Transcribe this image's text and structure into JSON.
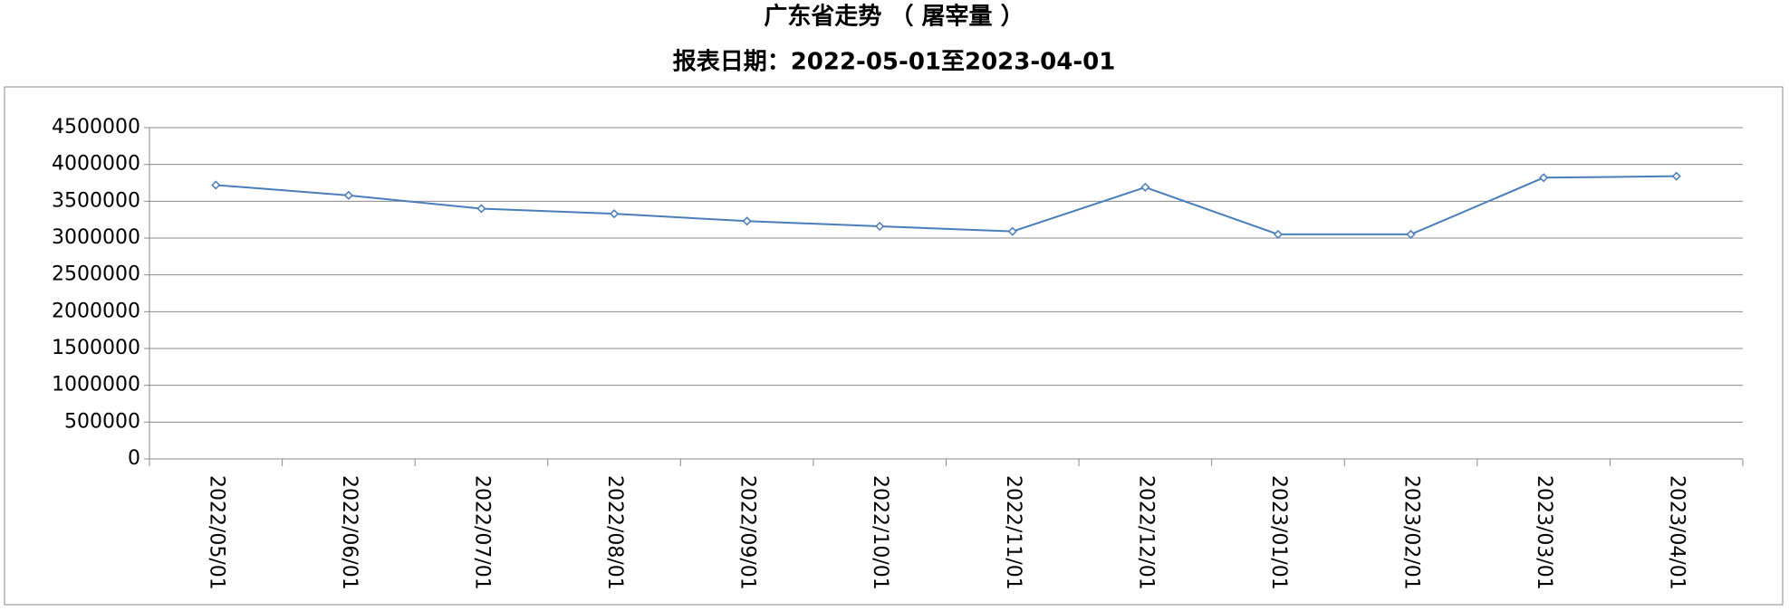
{
  "chart_data": {
    "type": "line",
    "title": "广东省走势 （ 屠宰量 ）",
    "subtitle": "报表日期：2022-05-01至2023-04-01",
    "categories": [
      "2022/05/01",
      "2022/06/01",
      "2022/07/01",
      "2022/08/01",
      "2022/09/01",
      "2022/10/01",
      "2022/11/01",
      "2022/12/01",
      "2023/01/01",
      "2023/02/01",
      "2023/03/01",
      "2023/04/01"
    ],
    "values": [
      3720000,
      3580000,
      3400000,
      3330000,
      3230000,
      3160000,
      3090000,
      3690000,
      3050000,
      3050000,
      3820000,
      3840000
    ],
    "color": "#4a7ebb",
    "ylim": [
      0,
      4500000
    ],
    "yticks": [
      0,
      500000,
      1000000,
      1500000,
      2000000,
      2500000,
      3000000,
      3500000,
      4000000,
      4500000
    ],
    "grid": true
  }
}
